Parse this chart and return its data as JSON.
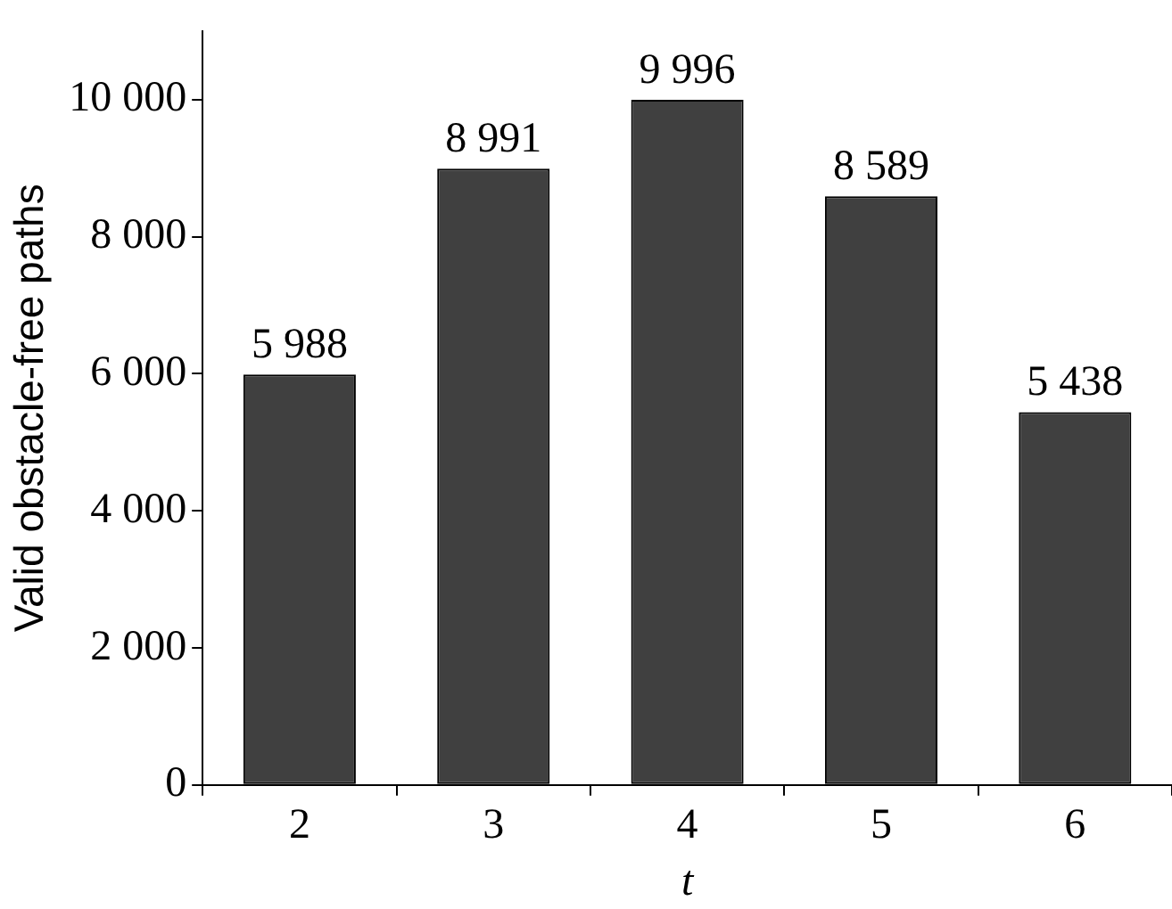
{
  "chart_data": {
    "type": "bar",
    "xlabel": "t",
    "ylabel": "Valid obstacle-free paths",
    "categories": [
      "2",
      "3",
      "4",
      "5",
      "6"
    ],
    "values": [
      5988,
      8991,
      9996,
      8589,
      5438
    ],
    "value_labels": [
      "5 988",
      "8 991",
      "9 996",
      "8 589",
      "5 438"
    ],
    "color": "#404040",
    "ylim": [
      0,
      11000
    ],
    "yticks": [
      0,
      {
        "value": 2000,
        "label": "2 000"
      },
      {
        "value": 4000,
        "label": "4 000"
      },
      {
        "value": 6000,
        "label": "6 000"
      },
      {
        "value": 8000,
        "label": "8 000"
      },
      {
        "value": 10000,
        "label": "10 000"
      }
    ],
    "grid": false,
    "legend": false
  }
}
